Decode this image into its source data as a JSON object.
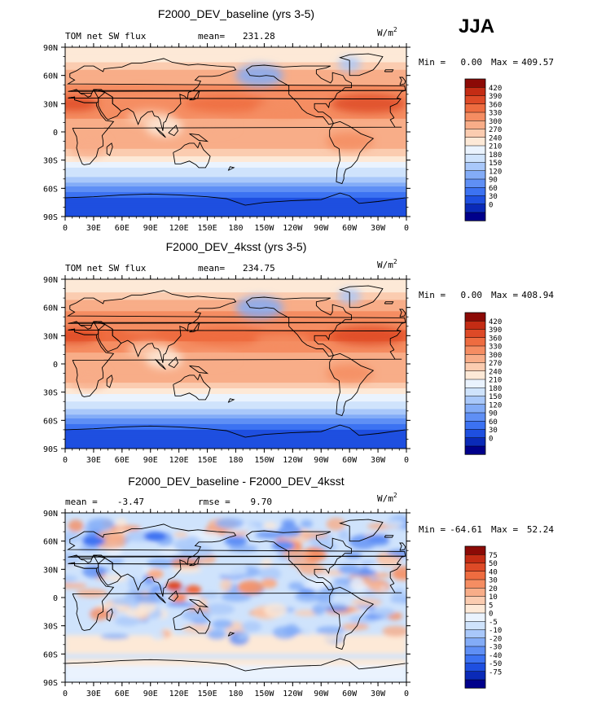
{
  "season": "JJA",
  "colors": {
    "abs_palette": [
      "#00008b",
      "#0a2ab8",
      "#1e4fe0",
      "#3c72f2",
      "#5f8ff5",
      "#83acf7",
      "#a9c8fa",
      "#cfe3fc",
      "#eaf3fe",
      "#fde9d7",
      "#fbccb0",
      "#f8ad88",
      "#f58d62",
      "#ee6c40",
      "#de4a27",
      "#c42c14",
      "#8c0a06"
    ],
    "diff_palette": [
      "#00008b",
      "#0a2ab8",
      "#1e4fe0",
      "#3c72f2",
      "#5f8ff5",
      "#83acf7",
      "#a9c8fa",
      "#cfe3fc",
      "#eaf3fe",
      "#fde9d7",
      "#fbccb0",
      "#f8ad88",
      "#f58d62",
      "#ee6c40",
      "#de4a27",
      "#c42c14",
      "#8c0a06"
    ]
  },
  "panels": [
    {
      "title": "F2000_DEV_baseline (yrs 3-5)",
      "left_label": "TOM net SW flux",
      "stat_label": "mean=",
      "stat_value": "231.28",
      "units_base": "W/m",
      "units_exp": "2",
      "min_label": "Min =",
      "min_value": "0.00",
      "max_label": "Max =",
      "max_value": "409.57",
      "colorbar_labels": [
        "420",
        "390",
        "360",
        "330",
        "300",
        "270",
        "240",
        "210",
        "180",
        "150",
        "120",
        "90",
        "60",
        "30",
        "0"
      ]
    },
    {
      "title": "F2000_DEV_4ksst (yrs 3-5)",
      "left_label": "TOM net SW flux",
      "stat_label": "mean=",
      "stat_value": "234.75",
      "units_base": "W/m",
      "units_exp": "2",
      "min_label": "Min =",
      "min_value": "0.00",
      "max_label": "Max =",
      "max_value": "408.94",
      "colorbar_labels": [
        "420",
        "390",
        "360",
        "330",
        "300",
        "270",
        "240",
        "210",
        "180",
        "150",
        "120",
        "90",
        "60",
        "30",
        "0"
      ]
    },
    {
      "title": "F2000_DEV_baseline - F2000_DEV_4ksst",
      "left_label": "mean =",
      "left_value": "-3.47",
      "stat_label": "rmse =",
      "stat_value": "9.70",
      "units_base": "W/m",
      "units_exp": "2",
      "min_label": "Min =",
      "min_value": "-64.61",
      "max_label": "Max =",
      "max_value": "52.24",
      "colorbar_labels": [
        "75",
        "50",
        "40",
        "30",
        "20",
        "10",
        "5",
        "0",
        "-5",
        "-10",
        "-20",
        "-30",
        "-40",
        "-50",
        "-75"
      ]
    }
  ],
  "chart_data": [
    {
      "type": "heatmap",
      "title": "F2000_DEV_baseline (yrs 3-5)",
      "variable": "TOM net SW flux",
      "units": "W/m2",
      "mean": 231.28,
      "min": 0.0,
      "max": 409.57,
      "x_ticks": [
        "0",
        "30E",
        "60E",
        "90E",
        "120E",
        "150E",
        "180",
        "150W",
        "120W",
        "90W",
        "60W",
        "30W",
        "0"
      ],
      "y_ticks": [
        "90N",
        "60N",
        "30N",
        "0",
        "30S",
        "60S",
        "90S"
      ],
      "xlim": [
        0,
        360
      ],
      "ylim": [
        -90,
        90
      ],
      "levels": [
        0,
        30,
        60,
        90,
        120,
        150,
        180,
        210,
        240,
        270,
        300,
        330,
        360,
        390,
        420
      ],
      "zonal_profile": {
        "lat": [
          80,
          70,
          60,
          50,
          40,
          30,
          20,
          10,
          0,
          -10,
          -20,
          -30,
          -40,
          -50,
          -60,
          -70,
          -80
        ],
        "value": [
          215,
          260,
          290,
          300,
          320,
          330,
          320,
          290,
          280,
          285,
          265,
          215,
          175,
          140,
          80,
          25,
          5
        ]
      }
    },
    {
      "type": "heatmap",
      "title": "F2000_DEV_4ksst (yrs 3-5)",
      "variable": "TOM net SW flux",
      "units": "W/m2",
      "mean": 234.75,
      "min": 0.0,
      "max": 408.94,
      "x_ticks": [
        "0",
        "30E",
        "60E",
        "90E",
        "120E",
        "150E",
        "180",
        "150W",
        "120W",
        "90W",
        "60W",
        "30W",
        "0"
      ],
      "y_ticks": [
        "90N",
        "60N",
        "30N",
        "0",
        "30S",
        "60S",
        "90S"
      ],
      "xlim": [
        0,
        360
      ],
      "ylim": [
        -90,
        90
      ],
      "levels": [
        0,
        30,
        60,
        90,
        120,
        150,
        180,
        210,
        240,
        270,
        300,
        330,
        360,
        390,
        420
      ],
      "zonal_profile": {
        "lat": [
          80,
          70,
          60,
          50,
          40,
          30,
          20,
          10,
          0,
          -10,
          -20,
          -30,
          -40,
          -50,
          -60,
          -70,
          -80
        ],
        "value": [
          220,
          265,
          295,
          305,
          325,
          335,
          325,
          295,
          285,
          290,
          270,
          220,
          178,
          142,
          82,
          26,
          5
        ]
      }
    },
    {
      "type": "heatmap",
      "title": "F2000_DEV_baseline - F2000_DEV_4ksst",
      "units": "W/m2",
      "mean": -3.47,
      "rmse": 9.7,
      "min": -64.61,
      "max": 52.24,
      "x_ticks": [
        "0",
        "30E",
        "60E",
        "90E",
        "120E",
        "150E",
        "180",
        "150W",
        "120W",
        "90W",
        "60W",
        "30W",
        "0"
      ],
      "y_ticks": [
        "90N",
        "60N",
        "30N",
        "0",
        "30S",
        "60S",
        "90S"
      ],
      "xlim": [
        0,
        360
      ],
      "ylim": [
        -90,
        90
      ],
      "levels": [
        -75,
        -50,
        -40,
        -30,
        -20,
        -10,
        -5,
        0,
        5,
        10,
        20,
        30,
        40,
        50,
        75
      ]
    }
  ]
}
